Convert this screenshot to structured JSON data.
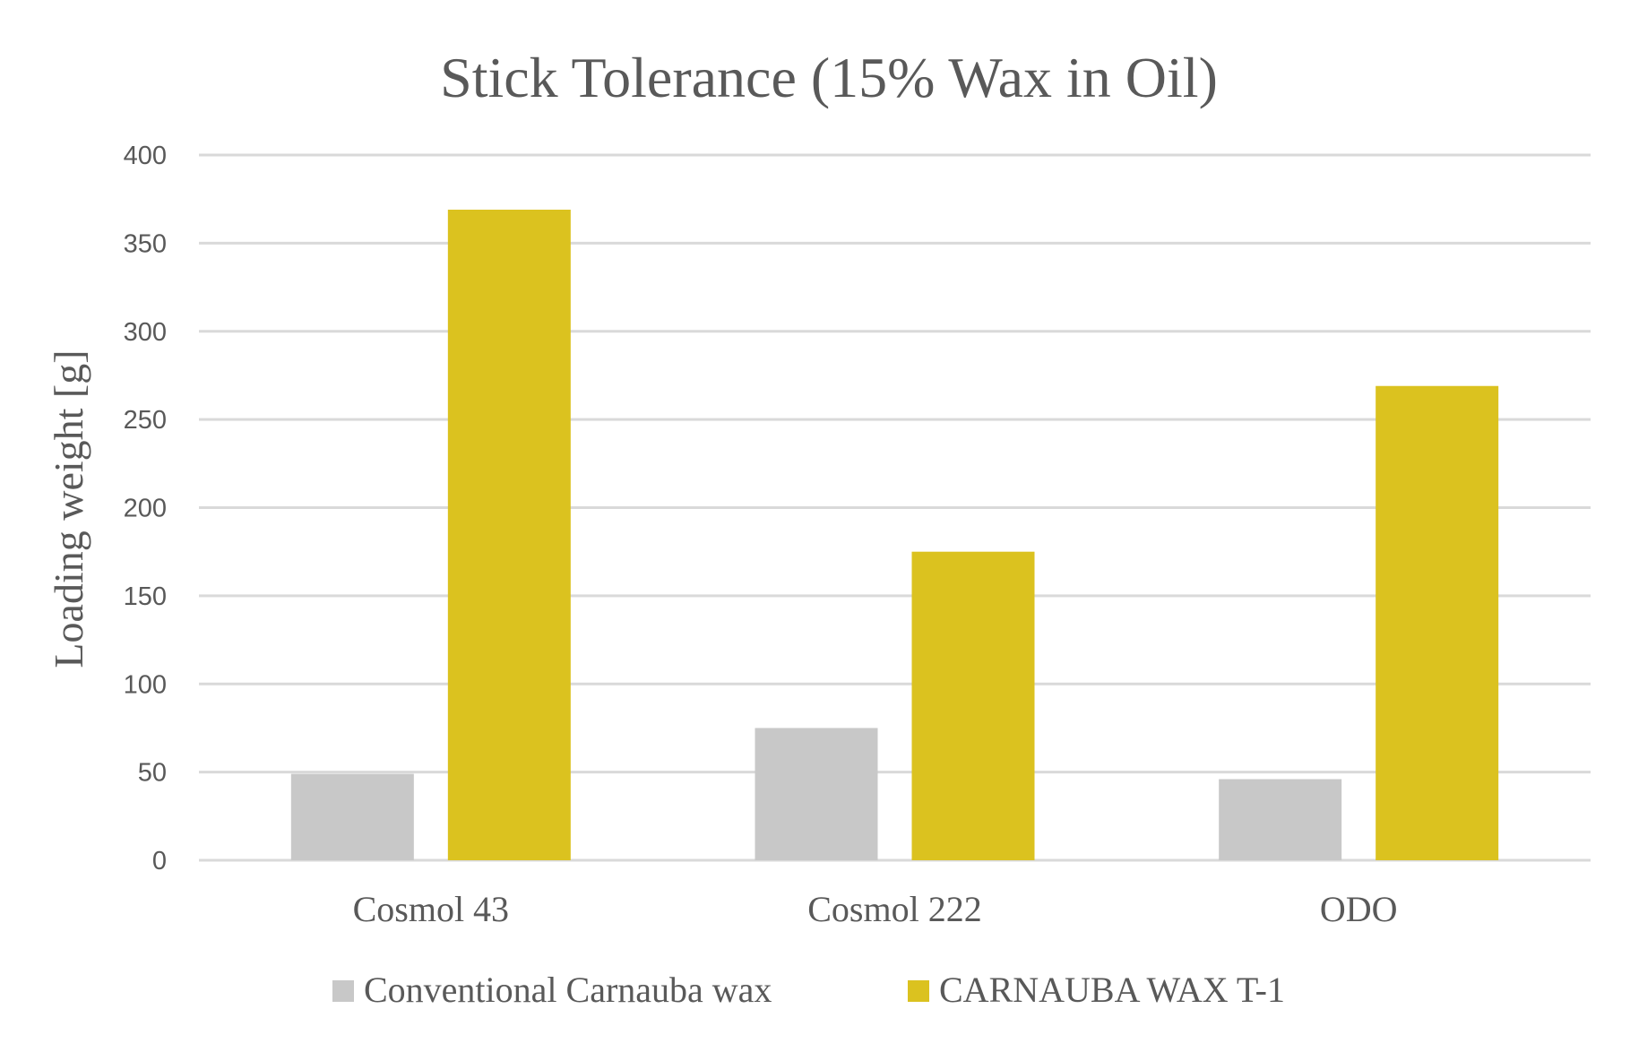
{
  "chart_data": {
    "type": "bar",
    "title": "Stick Tolerance (15% Wax in Oil)",
    "xlabel": "",
    "ylabel": "Loading weight [g]",
    "categories": [
      "Cosmol 43",
      "Cosmol 222",
      "ODO"
    ],
    "series": [
      {
        "name": "Conventional Carnauba wax",
        "color": "#c8c8c8",
        "values": [
          49,
          75,
          46
        ]
      },
      {
        "name": "CARNAUBA WAX T-1",
        "color": "#dbc21f",
        "values": [
          369,
          175,
          269
        ]
      }
    ],
    "ylim": [
      0,
      400
    ],
    "yticks": [
      0,
      50,
      100,
      150,
      200,
      250,
      300,
      350,
      400
    ],
    "grid": true,
    "legend": "bottom"
  }
}
